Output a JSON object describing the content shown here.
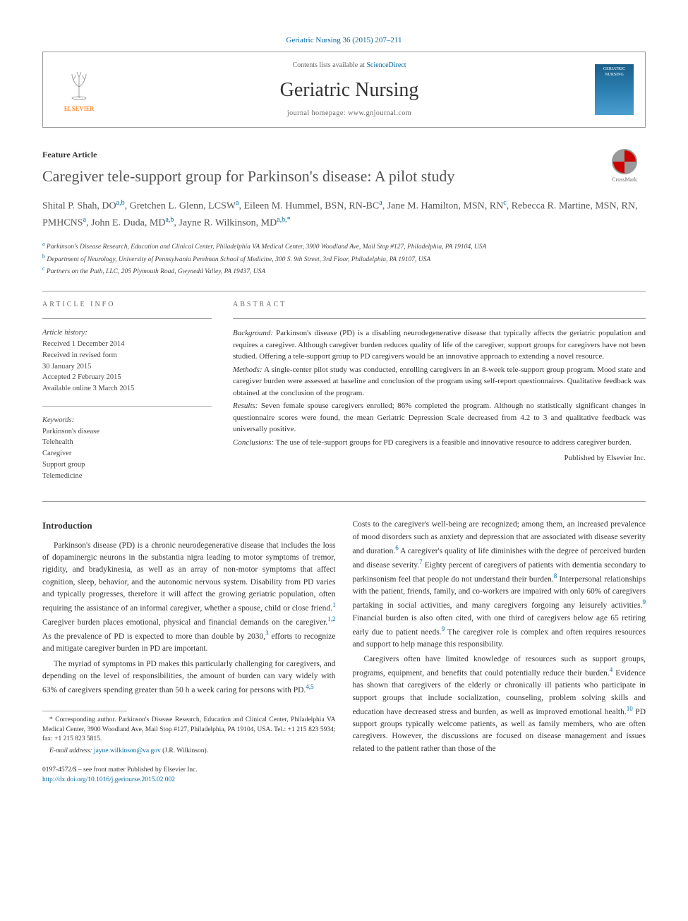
{
  "citation": "Geriatric Nursing 36 (2015) 207–211",
  "header": {
    "contents_prefix": "Contents lists available at ",
    "contents_link": "ScienceDirect",
    "journal": "Geriatric Nursing",
    "homepage_label": "journal homepage: ",
    "homepage_url": "www.gnjournal.com",
    "elsevier": "ELSEVIER",
    "cover_text": "GERIATRIC NURSING"
  },
  "crossmark": "CrossMark",
  "article_type": "Feature Article",
  "title": "Caregiver tele-support group for Parkinson's disease: A pilot study",
  "authors_html": "Shital P. Shah, DO<sup>a,b</sup>, Gretchen L. Glenn, LCSW<sup>a</sup>, Eileen M. Hummel, BSN, RN-BC<sup>a</sup>, Jane M. Hamilton, MSN, RN<sup>c</sup>, Rebecca R. Martine, MSN, RN, PMHCNS<sup>a</sup>, John E. Duda, MD<sup>a,b</sup>, Jayne R. Wilkinson, MD<sup>a,b,*</sup>",
  "affiliations": {
    "a": "Parkinson's Disease Research, Education and Clinical Center, Philadelphia VA Medical Center, 3900 Woodland Ave, Mail Stop #127, Philadelphia, PA 19104, USA",
    "b": "Department of Neurology, University of Pennsylvania Perelman School of Medicine, 300 S. 9th Street, 3rd Floor, Philadelphia, PA 19107, USA",
    "c": "Partners on the Path, LLC, 205 Plymouth Road, Gwynedd Valley, PA 19437, USA"
  },
  "article_info": {
    "header": "ARTICLE INFO",
    "history_label": "Article history:",
    "history": [
      "Received 1 December 2014",
      "Received in revised form",
      "30 January 2015",
      "Accepted 2 February 2015",
      "Available online 3 March 2015"
    ],
    "keywords_label": "Keywords:",
    "keywords": [
      "Parkinson's disease",
      "Telehealth",
      "Caregiver",
      "Support group",
      "Telemedicine"
    ]
  },
  "abstract": {
    "header": "ABSTRACT",
    "background_label": "Background:",
    "background": "Parkinson's disease (PD) is a disabling neurodegenerative disease that typically affects the geriatric population and requires a caregiver. Although caregiver burden reduces quality of life of the caregiver, support groups for caregivers have not been studied. Offering a tele-support group to PD caregivers would be an innovative approach to extending a novel resource.",
    "methods_label": "Methods:",
    "methods": "A single-center pilot study was conducted, enrolling caregivers in an 8-week tele-support group program. Mood state and caregiver burden were assessed at baseline and conclusion of the program using self-report questionnaires. Qualitative feedback was obtained at the conclusion of the program.",
    "results_label": "Results:",
    "results": "Seven female spouse caregivers enrolled; 86% completed the program. Although no statistically significant changes in questionnaire scores were found, the mean Geriatric Depression Scale decreased from 4.2 to 3 and qualitative feedback was universally positive.",
    "conclusions_label": "Conclusions:",
    "conclusions": "The use of tele-support groups for PD caregivers is a feasible and innovative resource to address caregiver burden.",
    "published_by": "Published by Elsevier Inc."
  },
  "body": {
    "intro_heading": "Introduction",
    "para1": "Parkinson's disease (PD) is a chronic neurodegenerative disease that includes the loss of dopaminergic neurons in the substantia nigra leading to motor symptoms of tremor, rigidity, and bradykinesia, as well as an array of non-motor symptoms that affect cognition, sleep, behavior, and the autonomic nervous system. Disability from PD varies and typically progresses, therefore it will affect the growing geriatric population, often requiring the assistance of an informal caregiver, whether a spouse, child or close friend.",
    "para1_tail": " Caregiver burden places emotional, physical and financial demands on the caregiver.",
    "para1_tail2": " As the prevalence of PD is expected to more than double by 2030,",
    "para1_tail3": " efforts to recognize and mitigate caregiver burden in PD are important.",
    "para2": "The myriad of symptoms in PD makes this particularly challenging for caregivers, and depending on the level of responsibilities, the amount of burden can vary widely with 63% of caregivers spending greater than 50 h a week caring for persons with PD.",
    "para3": "Costs to the caregiver's well-being are recognized; among them, an increased prevalence of mood disorders such as anxiety and depression that are associated with disease severity and duration.",
    "para3_tail": " A caregiver's quality of life diminishes with the degree of perceived burden and disease severity.",
    "para3_tail2": " Eighty percent of caregivers of patients with dementia secondary to parkinsonism feel that people do not understand their burden.",
    "para3_tail3": " Interpersonal relationships with the patient, friends, family, and co-workers are impaired with only 60% of caregivers partaking in social activities, and many caregivers forgoing any leisurely activities.",
    "para3_tail4": " Financial burden is also often cited, with one third of caregivers below age 65 retiring early due to patient needs.",
    "para3_tail5": " The caregiver role is complex and often requires resources and support to help manage this responsibility.",
    "para4": "Caregivers often have limited knowledge of resources such as support groups, programs, equipment, and benefits that could potentially reduce their burden.",
    "para4_tail": " Evidence has shown that caregivers of the elderly or chronically ill patients who participate in support groups that include socialization, counseling, problem solving skills and education have decreased stress and burden, as well as improved emotional health.",
    "para4_tail2": " PD support groups typically welcome patients, as well as family members, who are often caregivers. However, the discussions are focused on disease management and issues related to the patient rather than those of the"
  },
  "footnotes": {
    "corresponding": "* Corresponding author. Parkinson's Disease Research, Education and Clinical Center, Philadelphia VA Medical Center, 3900 Woodland Ave, Mail Stop #127, Philadelphia, PA 19104, USA. Tel.: +1 215 823 5934; fax: +1 215 823 5815.",
    "email_label": "E-mail address: ",
    "email": "jayne.wilkinson@va.gov",
    "email_suffix": " (J.R. Wilkinson)."
  },
  "footer": {
    "issn": "0197-4572/$ – see front matter Published by Elsevier Inc.",
    "doi": "http://dx.doi.org/10.1016/j.gerinurse.2015.02.002"
  },
  "refs": {
    "r1": "1",
    "r12": "1,2",
    "r3": "3",
    "r45": "4,5",
    "r6": "6",
    "r7": "7",
    "r8": "8",
    "r9": "9",
    "r4": "4",
    "r10": "10"
  },
  "colors": {
    "link": "#0066a1",
    "elsevier_orange": "#ff6c00"
  }
}
